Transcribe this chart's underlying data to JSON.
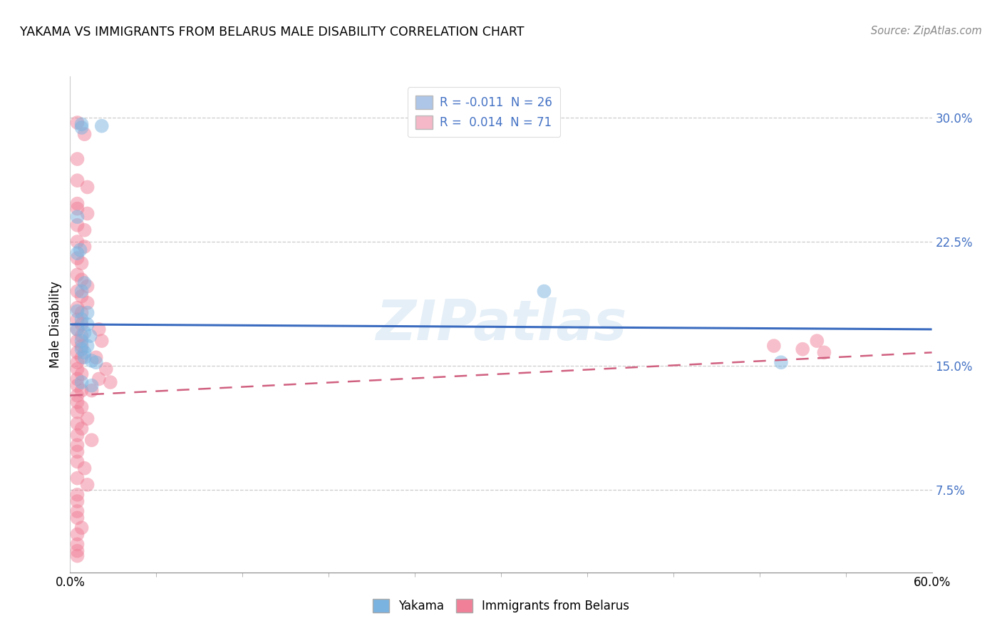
{
  "title": "YAKAMA VS IMMIGRANTS FROM BELARUS MALE DISABILITY CORRELATION CHART",
  "source": "Source: ZipAtlas.com",
  "ylabel_label": "Male Disability",
  "watermark": "ZIPatlas",
  "legend": [
    {
      "label": "R = -0.011  N = 26",
      "color": "#aec6e8"
    },
    {
      "label": "R =  0.014  N = 71",
      "color": "#f4b8c8"
    }
  ],
  "legend_labels_bottom": [
    "Yakama",
    "Immigrants from Belarus"
  ],
  "yakama_color": "#7ab3e0",
  "belarus_color": "#f08098",
  "trend_yakama_color": "#3a6bbf",
  "trend_belarus_color": "#d06080",
  "xmin": 0.0,
  "xmax": 0.6,
  "ymin": 0.025,
  "ymax": 0.325,
  "right_ytick_vals": [
    0.075,
    0.15,
    0.225,
    0.3
  ],
  "right_ytick_labels": [
    "7.5%",
    "15.0%",
    "22.5%",
    "30.0%"
  ],
  "yakama_points": [
    [
      0.008,
      0.296
    ],
    [
      0.008,
      0.294
    ],
    [
      0.022,
      0.295
    ],
    [
      0.005,
      0.24
    ],
    [
      0.007,
      0.22
    ],
    [
      0.005,
      0.218
    ],
    [
      0.01,
      0.2
    ],
    [
      0.008,
      0.195
    ],
    [
      0.33,
      0.195
    ],
    [
      0.005,
      0.183
    ],
    [
      0.012,
      0.182
    ],
    [
      0.008,
      0.178
    ],
    [
      0.012,
      0.175
    ],
    [
      0.005,
      0.172
    ],
    [
      0.01,
      0.17
    ],
    [
      0.014,
      0.168
    ],
    [
      0.008,
      0.165
    ],
    [
      0.012,
      0.162
    ],
    [
      0.008,
      0.16
    ],
    [
      0.01,
      0.158
    ],
    [
      0.01,
      0.155
    ],
    [
      0.015,
      0.153
    ],
    [
      0.018,
      0.152
    ],
    [
      0.008,
      0.14
    ],
    [
      0.015,
      0.138
    ],
    [
      0.495,
      0.152
    ]
  ],
  "belarus_points": [
    [
      0.005,
      0.297
    ],
    [
      0.01,
      0.29
    ],
    [
      0.005,
      0.275
    ],
    [
      0.005,
      0.262
    ],
    [
      0.012,
      0.258
    ],
    [
      0.005,
      0.248
    ],
    [
      0.005,
      0.245
    ],
    [
      0.012,
      0.242
    ],
    [
      0.005,
      0.235
    ],
    [
      0.01,
      0.232
    ],
    [
      0.005,
      0.225
    ],
    [
      0.01,
      0.222
    ],
    [
      0.005,
      0.215
    ],
    [
      0.008,
      0.212
    ],
    [
      0.005,
      0.205
    ],
    [
      0.008,
      0.202
    ],
    [
      0.012,
      0.198
    ],
    [
      0.005,
      0.195
    ],
    [
      0.008,
      0.192
    ],
    [
      0.012,
      0.188
    ],
    [
      0.005,
      0.185
    ],
    [
      0.008,
      0.182
    ],
    [
      0.005,
      0.178
    ],
    [
      0.008,
      0.175
    ],
    [
      0.005,
      0.172
    ],
    [
      0.008,
      0.168
    ],
    [
      0.005,
      0.165
    ],
    [
      0.008,
      0.162
    ],
    [
      0.005,
      0.158
    ],
    [
      0.008,
      0.155
    ],
    [
      0.005,
      0.152
    ],
    [
      0.005,
      0.148
    ],
    [
      0.008,
      0.145
    ],
    [
      0.005,
      0.142
    ],
    [
      0.005,
      0.138
    ],
    [
      0.008,
      0.135
    ],
    [
      0.005,
      0.132
    ],
    [
      0.005,
      0.128
    ],
    [
      0.008,
      0.125
    ],
    [
      0.005,
      0.122
    ],
    [
      0.012,
      0.118
    ],
    [
      0.005,
      0.115
    ],
    [
      0.008,
      0.112
    ],
    [
      0.005,
      0.108
    ],
    [
      0.015,
      0.105
    ],
    [
      0.005,
      0.102
    ],
    [
      0.005,
      0.098
    ],
    [
      0.005,
      0.092
    ],
    [
      0.01,
      0.088
    ],
    [
      0.005,
      0.082
    ],
    [
      0.012,
      0.078
    ],
    [
      0.005,
      0.072
    ],
    [
      0.005,
      0.068
    ],
    [
      0.005,
      0.062
    ],
    [
      0.005,
      0.058
    ],
    [
      0.008,
      0.052
    ],
    [
      0.005,
      0.048
    ],
    [
      0.005,
      0.042
    ],
    [
      0.005,
      0.038
    ],
    [
      0.005,
      0.035
    ],
    [
      0.49,
      0.162
    ],
    [
      0.51,
      0.16
    ],
    [
      0.52,
      0.165
    ],
    [
      0.525,
      0.158
    ],
    [
      0.015,
      0.135
    ],
    [
      0.02,
      0.142
    ],
    [
      0.018,
      0.155
    ],
    [
      0.022,
      0.165
    ],
    [
      0.025,
      0.148
    ],
    [
      0.028,
      0.14
    ],
    [
      0.02,
      0.172
    ]
  ],
  "yak_trend_x": [
    0.0,
    0.6
  ],
  "yak_trend_y": [
    0.175,
    0.172
  ],
  "bel_trend_x": [
    0.0,
    0.6
  ],
  "bel_trend_y": [
    0.132,
    0.158
  ]
}
